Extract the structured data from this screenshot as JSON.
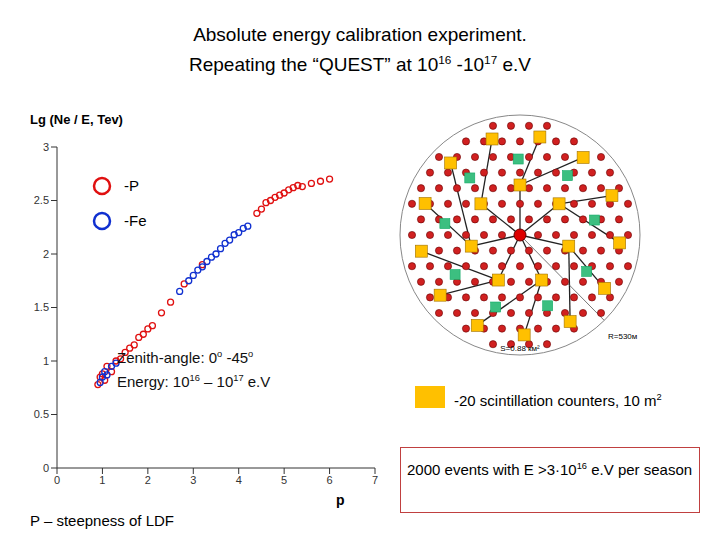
{
  "title": [
    [
      "Absolute energy calibration experiment."
    ],
    [
      "Repeating the  “QUEST” at 10",
      {
        "sup": "16"
      },
      " -10",
      {
        "sup": "17"
      },
      " e.V"
    ]
  ],
  "chart_data": {
    "type": "scatter",
    "ylabel": "Lg (Ne / E, Tev)",
    "xlabel": "p",
    "note": "P – steepness of LDF",
    "xlim": [
      0,
      7
    ],
    "xticks": [
      0,
      1,
      2,
      3,
      4,
      5,
      6,
      7
    ],
    "ylim": [
      0,
      3
    ],
    "yticks": [
      0,
      0.5,
      1,
      1.5,
      2,
      2.5,
      3
    ],
    "grid": false,
    "legend": "top-left",
    "annotations": [
      [
        "Zenith-angle: 0",
        {
          "sup": "o"
        },
        " -45",
        {
          "sup": "o"
        }
      ],
      [
        "Energy: 10",
        {
          "sup": "16"
        },
        " – 10",
        {
          "sup": "17"
        },
        " e.V"
      ]
    ],
    "series": [
      {
        "name": "-P",
        "color": "#e01010",
        "marker": "open_circle",
        "x": [
          0.9,
          0.95,
          1.0,
          1.05,
          1.1,
          1.2,
          1.3,
          1.4,
          1.5,
          1.6,
          1.7,
          1.8,
          1.9,
          2.0,
          2.1,
          2.3,
          2.5,
          2.8,
          3.2,
          4.4,
          4.5,
          4.6,
          4.7,
          4.8,
          4.9,
          5.0,
          5.1,
          5.2,
          5.3,
          5.4,
          5.6,
          5.8,
          6.0
        ],
        "values": [
          0.78,
          0.85,
          0.88,
          0.82,
          0.95,
          0.9,
          1.0,
          1.02,
          1.08,
          1.12,
          1.15,
          1.22,
          1.25,
          1.3,
          1.33,
          1.45,
          1.55,
          1.72,
          1.9,
          2.38,
          2.42,
          2.48,
          2.5,
          2.53,
          2.55,
          2.57,
          2.6,
          2.62,
          2.64,
          2.63,
          2.66,
          2.68,
          2.7
        ]
      },
      {
        "name": "-Fe",
        "color": "#1030d0",
        "marker": "open_circle",
        "x": [
          0.95,
          1.0,
          1.05,
          1.1,
          1.2,
          1.3,
          2.7,
          2.9,
          3.0,
          3.1,
          3.2,
          3.3,
          3.4,
          3.5,
          3.6,
          3.7,
          3.8,
          3.9,
          4.0,
          4.1,
          4.2
        ],
        "values": [
          0.8,
          0.85,
          0.9,
          0.87,
          0.95,
          0.98,
          1.65,
          1.75,
          1.8,
          1.85,
          1.88,
          1.93,
          1.97,
          2.0,
          2.05,
          2.1,
          2.13,
          2.18,
          2.2,
          2.24,
          2.26
        ]
      }
    ]
  },
  "diagram": {
    "area_label": "S=0.88 км²",
    "radius_label": "R=530м",
    "counters_legend": [
      "-20 scintillation counters, 10 m",
      {
        "sup": "2"
      }
    ],
    "info": [
      "2000 events with E >3·10",
      {
        "sup": "16"
      },
      " e.V  per season"
    ]
  }
}
